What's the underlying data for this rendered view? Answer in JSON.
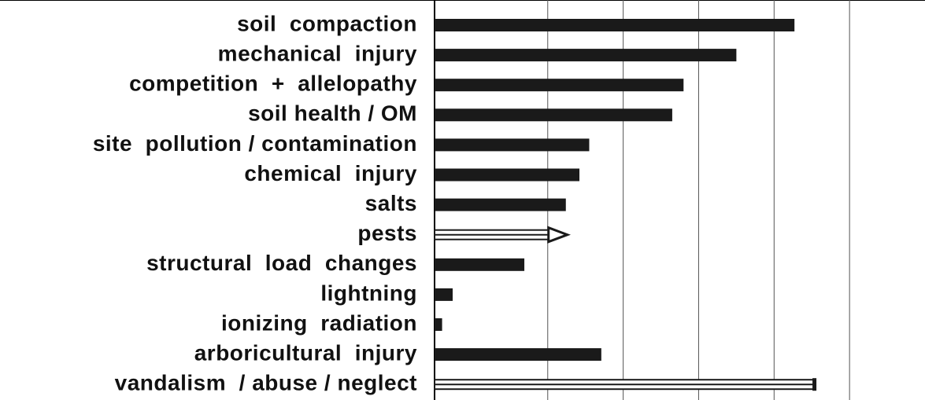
{
  "chart_data": {
    "type": "barh",
    "categories": [
      "soil  compaction",
      "mechanical  injury",
      "competition  +  allelopathy",
      "soil health / OM",
      "site  pollution / contamination",
      "chemical  injury",
      "salts",
      "pests",
      "structural  load  changes",
      "lightning",
      "ionizing  radiation",
      "arboricultural  injury",
      "vandalism  / abuse / neglect"
    ],
    "values": [
      4.77,
      4.0,
      3.3,
      3.15,
      2.05,
      1.92,
      1.74,
      1.51,
      1.19,
      0.24,
      0.1,
      2.21,
      5.04
    ],
    "bar_styles": [
      "solid",
      "solid",
      "solid",
      "solid",
      "solid",
      "solid",
      "solid",
      "open-arrow",
      "solid",
      "solid",
      "solid",
      "solid",
      "open"
    ],
    "color": "#1a1a1a",
    "xlim": [
      0,
      6.5
    ],
    "xticks": [
      1.5,
      2.5,
      3.5,
      4.5,
      5.5
    ],
    "grid": true
  }
}
